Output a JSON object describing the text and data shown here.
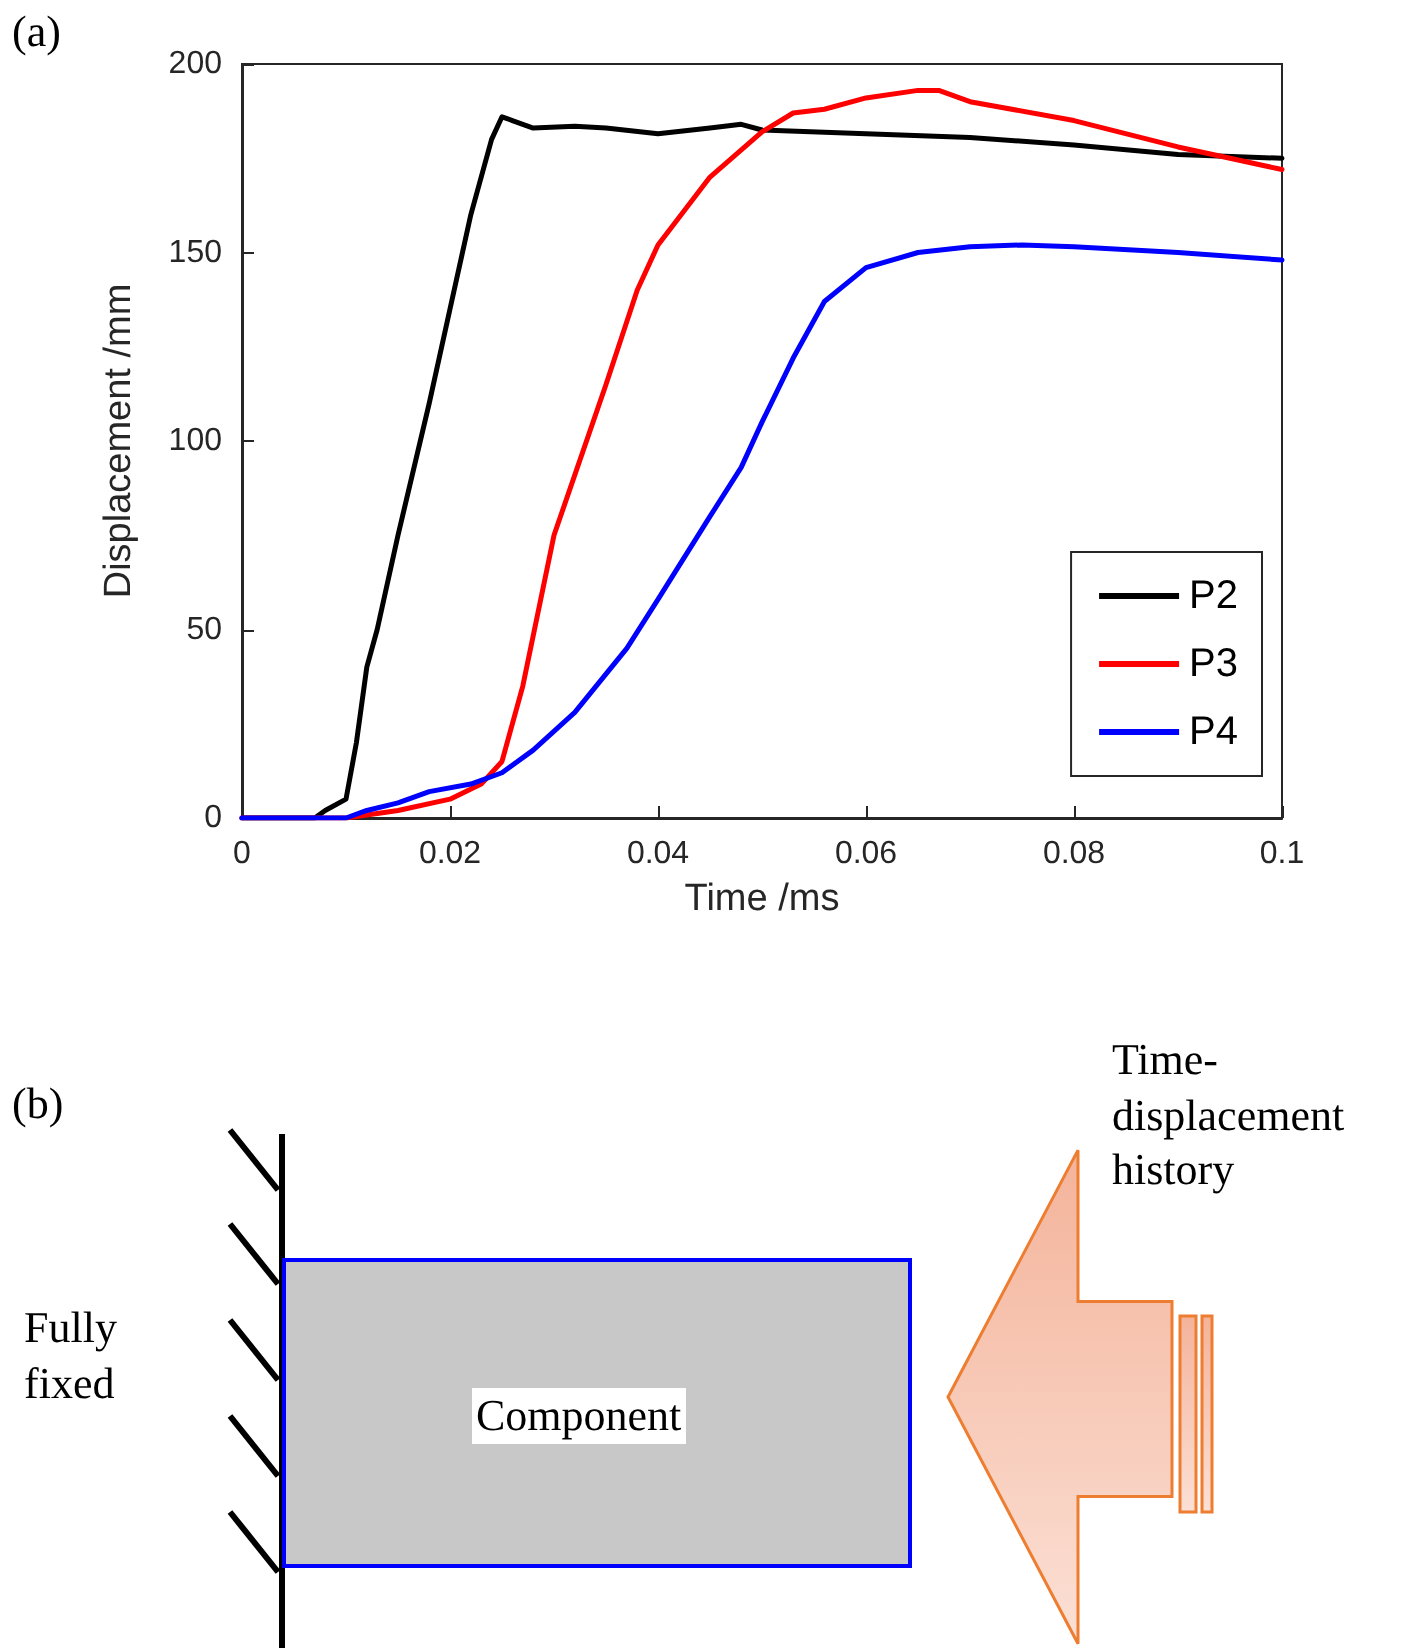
{
  "chart_data": {
    "type": "line",
    "xlabel": "Time /ms",
    "ylabel": "Displacement /mm",
    "xlim": [
      0,
      0.1
    ],
    "xticks": [
      0,
      0.02,
      0.04,
      0.06,
      0.08,
      0.1
    ],
    "ylim": [
      0,
      200
    ],
    "yticks": [
      0,
      50,
      100,
      150,
      200
    ],
    "grid": false,
    "legend": "bottom right",
    "marker": "none",
    "line_style": "solid",
    "annotations": [
      "(a)",
      "(b)",
      "Time-displacement history",
      "Fully fixed",
      "Component"
    ],
    "series": [
      {
        "name": "P2",
        "color": "#000000",
        "x": [
          0,
          0.007,
          0.008,
          0.01,
          0.011,
          0.012,
          0.013,
          0.015,
          0.018,
          0.02,
          0.022,
          0.024,
          0.025,
          0.026,
          0.028,
          0.032,
          0.035,
          0.04,
          0.045,
          0.048,
          0.05,
          0.06,
          0.07,
          0.08,
          0.09,
          0.1
        ],
        "values": [
          0,
          0,
          2,
          5,
          20,
          40,
          50,
          75,
          110,
          135,
          160,
          180,
          186,
          185,
          183,
          183.5,
          183,
          181.5,
          183,
          184,
          182.5,
          181.5,
          180.5,
          178.5,
          176,
          175
        ]
      },
      {
        "name": "P3",
        "color": "#ff0000",
        "x": [
          0,
          0.01,
          0.015,
          0.02,
          0.023,
          0.025,
          0.027,
          0.03,
          0.035,
          0.038,
          0.04,
          0.045,
          0.05,
          0.053,
          0.056,
          0.06,
          0.065,
          0.067,
          0.07,
          0.08,
          0.09,
          0.095,
          0.1
        ],
        "values": [
          0,
          0,
          2,
          5,
          9,
          15,
          35,
          75,
          115,
          140,
          152,
          170,
          182,
          187,
          188,
          191,
          193,
          193,
          190,
          185,
          178,
          175,
          172
        ]
      },
      {
        "name": "P4",
        "color": "#0000ff",
        "x": [
          0,
          0.01,
          0.012,
          0.015,
          0.018,
          0.022,
          0.025,
          0.028,
          0.032,
          0.037,
          0.04,
          0.045,
          0.048,
          0.05,
          0.053,
          0.056,
          0.06,
          0.065,
          0.07,
          0.075,
          0.08,
          0.09,
          0.1
        ],
        "values": [
          0,
          0,
          2,
          4,
          7,
          9,
          12,
          18,
          28,
          45,
          58,
          80,
          93,
          105,
          122,
          137,
          146,
          150,
          151.5,
          152,
          151.5,
          150,
          148
        ]
      }
    ]
  }
}
